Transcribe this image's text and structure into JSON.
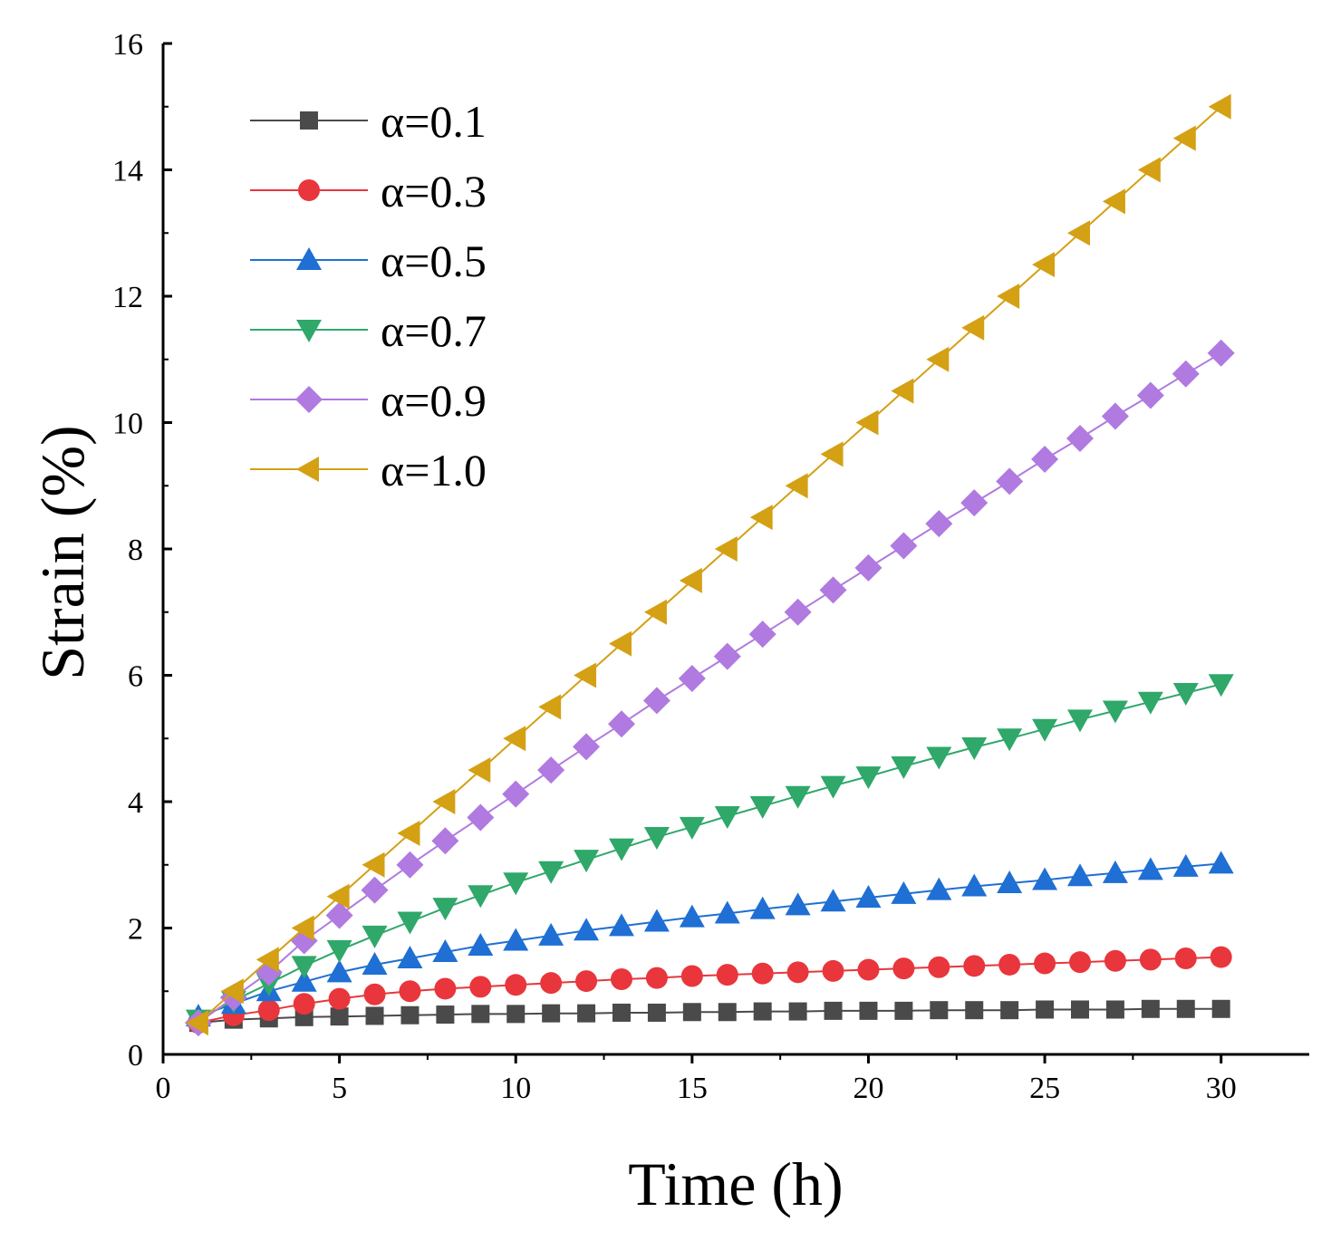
{
  "chart_data": {
    "type": "line",
    "title": "",
    "xlabel": "Time (h)",
    "ylabel": "Strain (%)",
    "xlim": [
      0,
      32.5
    ],
    "ylim": [
      0,
      16
    ],
    "xticks": [
      0,
      5,
      10,
      15,
      20,
      25,
      30
    ],
    "yticks": [
      0,
      2,
      4,
      6,
      8,
      10,
      12,
      14,
      16
    ],
    "grid": false,
    "legend_position": "top-left",
    "x": [
      1,
      2,
      3,
      4,
      5,
      6,
      7,
      8,
      9,
      10,
      11,
      12,
      13,
      14,
      15,
      16,
      17,
      18,
      19,
      20,
      21,
      22,
      23,
      24,
      25,
      26,
      27,
      28,
      29,
      30
    ],
    "series": [
      {
        "name": "α=0.1",
        "color": "#4a4a4a",
        "marker": "square",
        "values": [
          0.5,
          0.55,
          0.57,
          0.59,
          0.6,
          0.61,
          0.62,
          0.63,
          0.64,
          0.64,
          0.65,
          0.65,
          0.66,
          0.66,
          0.67,
          0.67,
          0.68,
          0.68,
          0.69,
          0.69,
          0.69,
          0.7,
          0.7,
          0.7,
          0.71,
          0.71,
          0.71,
          0.72,
          0.72,
          0.72
        ]
      },
      {
        "name": "α=0.3",
        "color": "#e8363c",
        "marker": "circle",
        "values": [
          0.5,
          0.62,
          0.7,
          0.8,
          0.88,
          0.95,
          1.0,
          1.04,
          1.07,
          1.1,
          1.13,
          1.16,
          1.19,
          1.21,
          1.24,
          1.26,
          1.28,
          1.3,
          1.32,
          1.34,
          1.36,
          1.38,
          1.4,
          1.42,
          1.44,
          1.46,
          1.48,
          1.5,
          1.52,
          1.54
        ]
      },
      {
        "name": "α=0.5",
        "color": "#1f6fd4",
        "marker": "triangle-up",
        "values": [
          0.6,
          0.8,
          1.0,
          1.15,
          1.3,
          1.42,
          1.52,
          1.62,
          1.72,
          1.8,
          1.88,
          1.96,
          2.03,
          2.1,
          2.17,
          2.23,
          2.3,
          2.36,
          2.42,
          2.48,
          2.54,
          2.6,
          2.66,
          2.71,
          2.76,
          2.82,
          2.87,
          2.92,
          2.97,
          3.02
        ]
      },
      {
        "name": "α=0.7",
        "color": "#2fa86a",
        "marker": "triangle-down",
        "values": [
          0.55,
          0.85,
          1.12,
          1.4,
          1.65,
          1.88,
          2.1,
          2.32,
          2.52,
          2.72,
          2.9,
          3.08,
          3.26,
          3.44,
          3.6,
          3.77,
          3.93,
          4.09,
          4.25,
          4.4,
          4.56,
          4.71,
          4.86,
          5.0,
          5.15,
          5.3,
          5.44,
          5.58,
          5.72,
          5.86
        ]
      },
      {
        "name": "α=0.9",
        "color": "#b07ae0",
        "marker": "diamond",
        "values": [
          0.5,
          0.9,
          1.3,
          1.8,
          2.2,
          2.6,
          3.0,
          3.38,
          3.75,
          4.12,
          4.5,
          4.87,
          5.23,
          5.6,
          5.95,
          6.3,
          6.65,
          7.0,
          7.35,
          7.7,
          8.05,
          8.4,
          8.73,
          9.07,
          9.42,
          9.75,
          10.1,
          10.43,
          10.77,
          11.1
        ]
      },
      {
        "name": "α=1.0",
        "color": "#d4a014",
        "marker": "triangle-left",
        "values": [
          0.5,
          1.0,
          1.5,
          2.0,
          2.5,
          3.0,
          3.5,
          4.0,
          4.5,
          5.0,
          5.5,
          6.0,
          6.5,
          7.0,
          7.5,
          8.0,
          8.5,
          9.0,
          9.5,
          10.0,
          10.5,
          11.0,
          11.5,
          12.0,
          12.5,
          13.0,
          13.5,
          14.0,
          14.5,
          15.0
        ]
      }
    ]
  }
}
